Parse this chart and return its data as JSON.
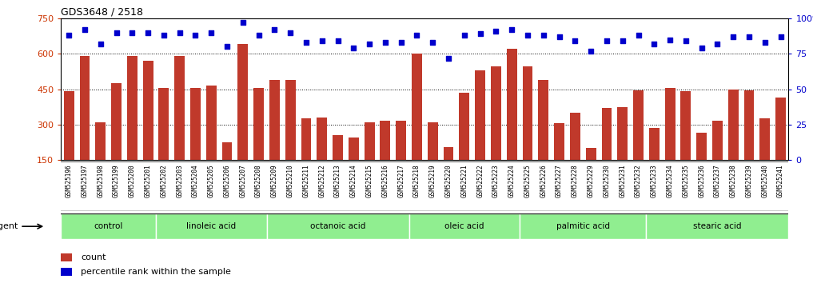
{
  "title": "GDS3648 / 2518",
  "samples": [
    "GSM525196",
    "GSM525197",
    "GSM525198",
    "GSM525199",
    "GSM525200",
    "GSM525201",
    "GSM525202",
    "GSM525203",
    "GSM525204",
    "GSM525205",
    "GSM525206",
    "GSM525207",
    "GSM525208",
    "GSM525209",
    "GSM525210",
    "GSM525211",
    "GSM525212",
    "GSM525213",
    "GSM525214",
    "GSM525215",
    "GSM525216",
    "GSM525217",
    "GSM525218",
    "GSM525219",
    "GSM525220",
    "GSM525221",
    "GSM525222",
    "GSM525223",
    "GSM525224",
    "GSM525225",
    "GSM525226",
    "GSM525227",
    "GSM525228",
    "GSM525229",
    "GSM525230",
    "GSM525231",
    "GSM525232",
    "GSM525233",
    "GSM525234",
    "GSM525235",
    "GSM525236",
    "GSM525237",
    "GSM525238",
    "GSM525239",
    "GSM525240",
    "GSM525241"
  ],
  "counts": [
    440,
    590,
    310,
    475,
    590,
    570,
    455,
    590,
    455,
    465,
    225,
    640,
    455,
    490,
    490,
    325,
    330,
    255,
    245,
    310,
    315,
    315,
    600,
    310,
    205,
    435,
    530,
    545,
    620,
    545,
    490,
    305,
    350,
    200,
    370,
    375,
    445,
    285,
    455,
    440,
    265,
    315,
    450,
    445,
    325,
    415
  ],
  "percentile_ranks": [
    88,
    92,
    82,
    90,
    90,
    90,
    88,
    90,
    88,
    90,
    80,
    97,
    88,
    92,
    90,
    83,
    84,
    84,
    79,
    82,
    83,
    83,
    88,
    83,
    72,
    88,
    89,
    91,
    92,
    88,
    88,
    87,
    84,
    77,
    84,
    84,
    88,
    82,
    85,
    84,
    79,
    82,
    87,
    87,
    83,
    87
  ],
  "groups": [
    {
      "label": "control",
      "start": 0,
      "end": 6
    },
    {
      "label": "linoleic acid",
      "start": 6,
      "end": 13
    },
    {
      "label": "octanoic acid",
      "start": 13,
      "end": 22
    },
    {
      "label": "oleic acid",
      "start": 22,
      "end": 29
    },
    {
      "label": "palmitic acid",
      "start": 29,
      "end": 37
    },
    {
      "label": "stearic acid",
      "start": 37,
      "end": 46
    }
  ],
  "group_color_light": "#DFFFDF",
  "group_color_mid": "#90EE90",
  "bar_color": "#C0392B",
  "dot_color": "#0000CC",
  "ylim_left": [
    150,
    750
  ],
  "ylim_right": [
    0,
    100
  ],
  "yticks_left": [
    150,
    300,
    450,
    600,
    750
  ],
  "yticks_right": [
    0,
    25,
    50,
    75,
    100
  ],
  "grid_values": [
    300,
    450,
    600
  ],
  "bg_color": "#FFFFFF",
  "tick_label_color_left": "#CC3300",
  "tick_label_color_right": "#0000CC",
  "agent_label": "agent",
  "xlabel_bg": "#D8D8D8"
}
